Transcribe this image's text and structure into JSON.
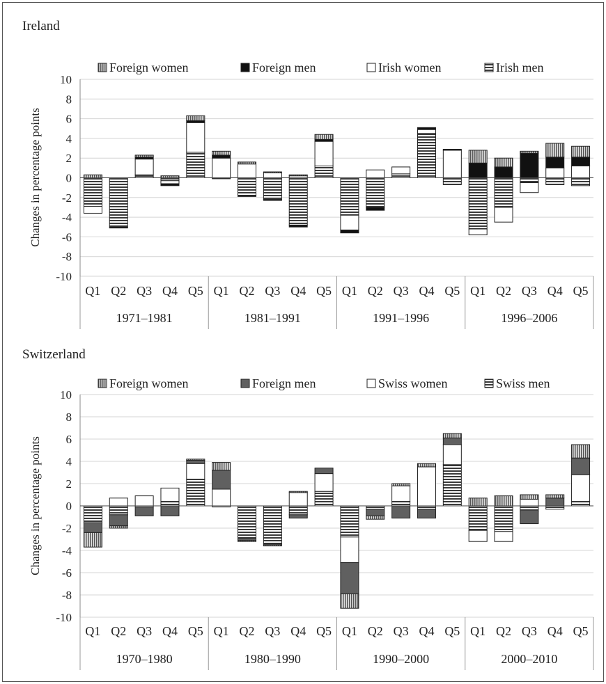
{
  "chart_data": [
    {
      "type": "bar",
      "stacked": true,
      "title": "Ireland",
      "ylabel": "Changes in percentage points",
      "ylim": [
        -10,
        10
      ],
      "yticks": [
        10,
        8,
        6,
        4,
        2,
        0,
        -2,
        -4,
        -6,
        -8,
        -10
      ],
      "categories": [
        "Q1",
        "Q2",
        "Q3",
        "Q4",
        "Q5"
      ],
      "groups": [
        "1971–1981",
        "1981–1991",
        "1991–1996",
        "1996–2006"
      ],
      "legend": [
        "Foreign women",
        "Foreign men",
        "Irish women",
        "Irish men"
      ],
      "legend_position": "top",
      "grid": true,
      "series": [
        {
          "name": "Irish men",
          "pattern": "hstripe",
          "values": [
            [
              -2.9,
              -5.0,
              0.3,
              -0.3,
              2.6
            ],
            [
              -0.1,
              -1.8,
              -2.2,
              -4.8,
              1.2
            ],
            [
              -3.8,
              -3.0,
              0.4,
              4.5,
              -0.7
            ],
            [
              -5.2,
              -3.0,
              -0.5,
              -0.7,
              -0.8
            ]
          ]
        },
        {
          "name": "Irish women",
          "pattern": "white",
          "values": [
            [
              -0.7,
              0.0,
              1.6,
              -0.3,
              3.0
            ],
            [
              2.0,
              1.4,
              0.5,
              0.2,
              2.5
            ],
            [
              -1.5,
              0.8,
              0.7,
              0.4,
              2.8
            ],
            [
              -0.6,
              -1.5,
              -1.0,
              1.0,
              1.2
            ]
          ]
        },
        {
          "name": "Foreign men",
          "pattern": "black",
          "values": [
            [
              0.0,
              -0.1,
              0.2,
              -0.2,
              0.2
            ],
            [
              0.3,
              -0.1,
              -0.1,
              -0.2,
              0.2
            ],
            [
              -0.3,
              -0.3,
              0.0,
              0.2,
              0.1
            ],
            [
              1.5,
              1.1,
              2.5,
              1.1,
              0.9
            ]
          ]
        },
        {
          "name": "Foreign women",
          "pattern": "vstripe",
          "values": [
            [
              0.3,
              0.0,
              0.2,
              0.2,
              0.5
            ],
            [
              0.4,
              0.2,
              0.1,
              0.1,
              0.5
            ],
            [
              0.0,
              0.0,
              0.0,
              0.0,
              0.0
            ],
            [
              1.3,
              0.9,
              0.2,
              1.4,
              1.1
            ]
          ]
        }
      ]
    },
    {
      "type": "bar",
      "stacked": true,
      "title": "Switzerland",
      "ylabel": "Changes in percentage points",
      "ylim": [
        -10,
        10
      ],
      "yticks": [
        10,
        8,
        6,
        4,
        2,
        0,
        -2,
        -4,
        -6,
        -8,
        -10
      ],
      "categories": [
        "Q1",
        "Q2",
        "Q3",
        "Q4",
        "Q5"
      ],
      "groups": [
        "1970–1980",
        "1980–1990",
        "1990–2000",
        "2000–2010"
      ],
      "legend": [
        "Foreign women",
        "Foreign men",
        "Swiss women",
        "Swiss men"
      ],
      "legend_position": "top",
      "grid": true,
      "series": [
        {
          "name": "Swiss men",
          "pattern": "hstripe",
          "values": [
            [
              -1.5,
              -0.8,
              -0.1,
              0.4,
              2.4
            ],
            [
              -0.1,
              -2.9,
              -3.4,
              -0.8,
              1.3
            ],
            [
              -2.8,
              -0.3,
              0.4,
              -0.3,
              3.7
            ],
            [
              -2.2,
              -2.3,
              -0.5,
              -0.3,
              0.4
            ]
          ]
        },
        {
          "name": "Swiss women",
          "pattern": "white",
          "values": [
            [
              0.0,
              0.7,
              0.9,
              1.2,
              1.4
            ],
            [
              1.5,
              0.0,
              0.0,
              1.2,
              1.6
            ],
            [
              -2.3,
              0.0,
              1.4,
              3.5,
              1.8
            ],
            [
              -1.0,
              -0.9,
              0.6,
              0.0,
              2.4
            ]
          ]
        },
        {
          "name": "Foreign men",
          "pattern": "dark",
          "values": [
            [
              -0.9,
              -1.0,
              -0.8,
              -0.9,
              0.3
            ],
            [
              1.7,
              -0.2,
              -0.1,
              -0.3,
              0.5
            ],
            [
              -2.8,
              -0.6,
              -1.1,
              -0.8,
              0.6
            ],
            [
              0.0,
              0.0,
              -1.1,
              0.7,
              1.5
            ]
          ]
        },
        {
          "name": "Foreign women",
          "pattern": "vstripe",
          "values": [
            [
              -1.3,
              -0.2,
              0.0,
              0.0,
              0.1
            ],
            [
              0.7,
              -0.1,
              -0.1,
              0.1,
              0.0
            ],
            [
              -1.3,
              -0.3,
              0.2,
              0.3,
              0.4
            ],
            [
              0.7,
              0.9,
              0.4,
              0.3,
              1.2
            ]
          ]
        }
      ]
    }
  ]
}
